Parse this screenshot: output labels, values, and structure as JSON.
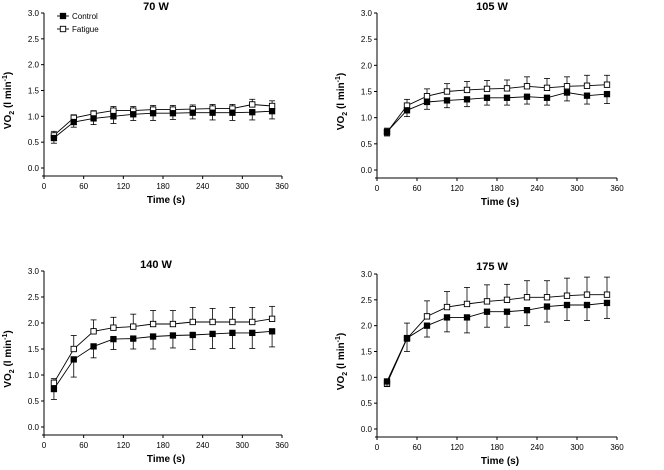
{
  "legend": {
    "control": "Control",
    "fatigue": "Fatigue"
  },
  "chart_data": [
    {
      "type": "line",
      "title": "70 W",
      "xlabel": "Time (s)",
      "ylabel_main": "VO",
      "ylabel_sub": "2",
      "ylabel_unit": " (l min",
      "ylabel_exp": "-1",
      "ylabel_close": ")",
      "xlim": [
        0,
        360
      ],
      "ylim": [
        0,
        3
      ],
      "xticks": [
        "0",
        "60",
        "120",
        "180",
        "240",
        "300",
        "360"
      ],
      "yticks": [
        "0.0",
        "0.5",
        "1.0",
        "1.5",
        "2.0",
        "2.5",
        "3.0"
      ],
      "legend_position": "top-left",
      "x": [
        15,
        45,
        75,
        105,
        135,
        165,
        195,
        225,
        255,
        285,
        315,
        345
      ],
      "series": [
        {
          "name": "Control",
          "marker": "filled-square",
          "values": [
            0.58,
            0.89,
            0.96,
            1.0,
            1.04,
            1.06,
            1.06,
            1.07,
            1.07,
            1.07,
            1.08,
            1.1
          ],
          "err": [
            0.1,
            0.1,
            0.12,
            0.14,
            0.12,
            0.14,
            0.12,
            0.12,
            0.14,
            0.15,
            0.15,
            0.15
          ]
        },
        {
          "name": "Fatigue",
          "marker": "open-square",
          "values": [
            0.63,
            0.97,
            1.05,
            1.11,
            1.11,
            1.13,
            1.13,
            1.14,
            1.15,
            1.15,
            1.23,
            1.2
          ],
          "err": [
            0.08,
            0.06,
            0.06,
            0.08,
            0.08,
            0.08,
            0.08,
            0.08,
            0.08,
            0.08,
            0.1,
            0.1
          ]
        }
      ]
    },
    {
      "type": "line",
      "title": "105 W",
      "xlabel": "Time (s)",
      "ylabel_main": "VO",
      "ylabel_sub": "2",
      "ylabel_unit": " (l min",
      "ylabel_exp": "-1",
      "ylabel_close": ")",
      "xlim": [
        0,
        360
      ],
      "ylim": [
        0,
        3
      ],
      "xticks": [
        "0",
        "60",
        "120",
        "180",
        "240",
        "300",
        "360"
      ],
      "yticks": [
        "0.0",
        "0.5",
        "1.0",
        "1.5",
        "2.0",
        "2.5",
        "3.0"
      ],
      "x": [
        15,
        45,
        75,
        105,
        135,
        165,
        195,
        225,
        255,
        285,
        315,
        345
      ],
      "series": [
        {
          "name": "Control",
          "marker": "filled-square",
          "values": [
            0.73,
            1.14,
            1.3,
            1.33,
            1.35,
            1.38,
            1.38,
            1.4,
            1.38,
            1.48,
            1.42,
            1.45
          ],
          "err": [
            0.08,
            0.12,
            0.14,
            0.14,
            0.14,
            0.14,
            0.14,
            0.14,
            0.14,
            0.16,
            0.16,
            0.18
          ]
        },
        {
          "name": "Fatigue",
          "marker": "open-square",
          "values": [
            0.72,
            1.23,
            1.41,
            1.5,
            1.53,
            1.55,
            1.56,
            1.6,
            1.57,
            1.6,
            1.61,
            1.63
          ],
          "err": [
            0.08,
            0.12,
            0.14,
            0.15,
            0.16,
            0.16,
            0.16,
            0.18,
            0.18,
            0.18,
            0.2,
            0.18
          ]
        }
      ]
    },
    {
      "type": "line",
      "title": "140 W",
      "xlabel": "Time (s)",
      "ylabel_main": "VO",
      "ylabel_sub": "2",
      "ylabel_unit": " (l min",
      "ylabel_exp": "-1",
      "ylabel_close": ")",
      "xlim": [
        0,
        360
      ],
      "ylim": [
        0,
        3
      ],
      "xticks": [
        "0",
        "60",
        "120",
        "180",
        "240",
        "300",
        "360"
      ],
      "yticks": [
        "0.0",
        "0.5",
        "1.0",
        "1.5",
        "2.0",
        "2.5",
        "3.0"
      ],
      "x": [
        15,
        45,
        75,
        105,
        135,
        165,
        195,
        225,
        255,
        285,
        315,
        345
      ],
      "series": [
        {
          "name": "Control",
          "marker": "filled-square",
          "values": [
            0.73,
            1.3,
            1.55,
            1.69,
            1.7,
            1.74,
            1.76,
            1.77,
            1.79,
            1.81,
            1.81,
            1.84
          ],
          "err": [
            0.2,
            0.34,
            0.22,
            0.2,
            0.2,
            0.24,
            0.24,
            0.28,
            0.28,
            0.3,
            0.3,
            0.3
          ]
        },
        {
          "name": "Fatigue",
          "marker": "open-square",
          "values": [
            0.85,
            1.5,
            1.84,
            1.91,
            1.93,
            1.98,
            1.98,
            2.02,
            2.02,
            2.02,
            2.02,
            2.08
          ],
          "err": [
            0.08,
            0.26,
            0.22,
            0.2,
            0.24,
            0.26,
            0.26,
            0.28,
            0.26,
            0.28,
            0.28,
            0.24
          ]
        }
      ]
    },
    {
      "type": "line",
      "title": "175 W",
      "xlabel": "Time (s)",
      "ylabel_main": "VO",
      "ylabel_sub": "2",
      "ylabel_unit": " (l min",
      "ylabel_exp": "-1",
      "ylabel_close": ")",
      "xlim": [
        0,
        360
      ],
      "ylim": [
        0,
        3
      ],
      "xticks": [
        "0",
        "60",
        "120",
        "180",
        "240",
        "300",
        "360"
      ],
      "yticks": [
        "0.0",
        "0.5",
        "1.0",
        "1.5",
        "2.0",
        "2.5",
        "3.0"
      ],
      "x": [
        15,
        45,
        75,
        105,
        135,
        165,
        195,
        225,
        255,
        285,
        315,
        345
      ],
      "series": [
        {
          "name": "Control",
          "marker": "filled-square",
          "values": [
            0.92,
            1.76,
            2.0,
            2.16,
            2.16,
            2.27,
            2.27,
            2.3,
            2.37,
            2.4,
            2.4,
            2.44
          ],
          "err": [
            0.1,
            0.26,
            0.22,
            0.28,
            0.3,
            0.3,
            0.3,
            0.3,
            0.3,
            0.3,
            0.3,
            0.3
          ]
        },
        {
          "name": "Fatigue",
          "marker": "open-square",
          "values": [
            0.88,
            1.75,
            2.18,
            2.36,
            2.42,
            2.47,
            2.5,
            2.55,
            2.55,
            2.58,
            2.6,
            2.6
          ],
          "err": [
            0.06,
            0.3,
            0.3,
            0.3,
            0.32,
            0.32,
            0.3,
            0.32,
            0.32,
            0.34,
            0.34,
            0.34
          ]
        }
      ]
    }
  ]
}
